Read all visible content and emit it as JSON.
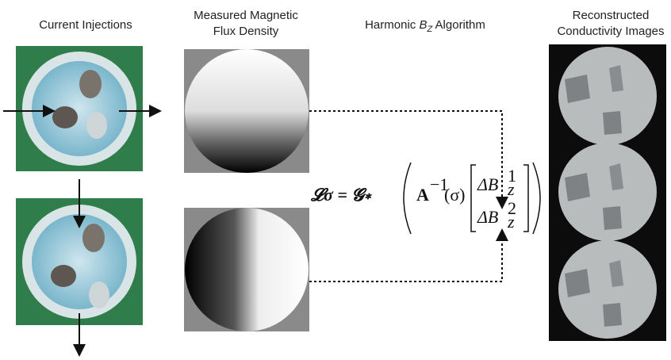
{
  "headers": {
    "current": "Current Injections",
    "flux": [
      "Measured Magnetic",
      "Flux Density"
    ],
    "algorithm": {
      "pre": "Harmonic ",
      "symbol": "B",
      "subscript": "Z",
      "post": " Algorithm"
    },
    "reconstructed": [
      "Reconstructed",
      "Conductivity Images"
    ]
  },
  "formula": {
    "lhs": "𝓛σ = 𝓖∗",
    "operator": "A",
    "exponent": "−1",
    "argument": "(σ)",
    "entry": "ΔB",
    "subscript": "z",
    "sup1": "1",
    "sup2": "2"
  }
}
